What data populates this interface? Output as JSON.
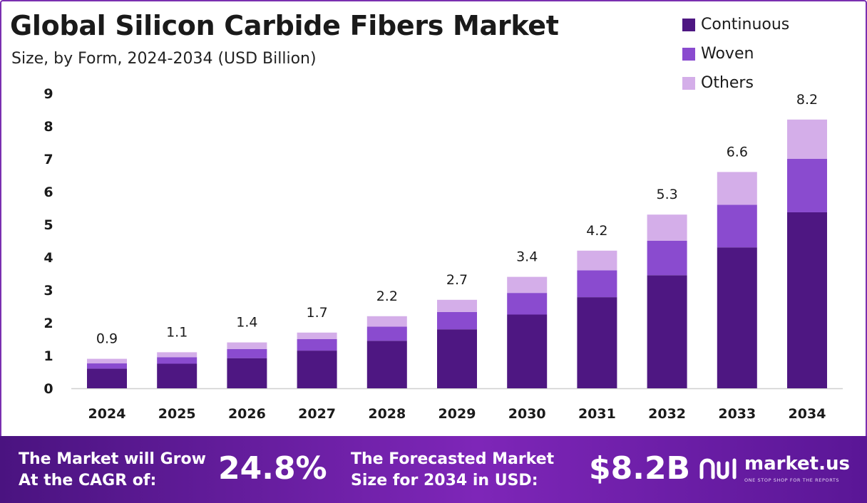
{
  "header": {
    "title": "Global Silicon Carbide Fibers Market",
    "subtitle": "Size, by Form, 2024-2034 (USD Billion)"
  },
  "colors": {
    "continuous": "#4e1782",
    "woven": "#8a4bcf",
    "others": "#d4aee9",
    "frame": "#7a2fb0",
    "footer_start": "#4a1380",
    "footer_end": "#7e26b8"
  },
  "chart_data": {
    "type": "bar",
    "stacked": true,
    "categories": [
      "2024",
      "2025",
      "2026",
      "2027",
      "2028",
      "2029",
      "2030",
      "2031",
      "2032",
      "2033",
      "2034"
    ],
    "series": [
      {
        "name": "Continuous",
        "values": [
          0.6,
          0.75,
          0.92,
          1.15,
          1.45,
          1.8,
          2.25,
          2.78,
          3.45,
          4.3,
          5.37
        ]
      },
      {
        "name": "Woven",
        "values": [
          0.16,
          0.2,
          0.28,
          0.35,
          0.43,
          0.53,
          0.66,
          0.82,
          1.05,
          1.3,
          1.63
        ]
      },
      {
        "name": "Others",
        "values": [
          0.14,
          0.15,
          0.2,
          0.2,
          0.32,
          0.37,
          0.49,
          0.6,
          0.8,
          1.0,
          1.2
        ]
      }
    ],
    "totals": [
      "0.9",
      "1.1",
      "1.4",
      "1.7",
      "2.2",
      "2.7",
      "3.4",
      "4.2",
      "5.3",
      "6.6",
      "8.2"
    ],
    "y_ticks": [
      "0",
      "1",
      "2",
      "3",
      "4",
      "5",
      "6",
      "7",
      "8",
      "9"
    ],
    "ylim": [
      0,
      9
    ],
    "title": "Global Silicon Carbide Fibers Market",
    "subtitle": "Size, by Form, 2024-2034 (USD Billion)",
    "xlabel": "",
    "ylabel": "",
    "grid": false,
    "legend_position": "top-right"
  },
  "footer": {
    "cagr_label_line1": "The Market will Grow",
    "cagr_label_line2": "At the CAGR of:",
    "cagr_value": "24.8%",
    "forecast_label_line1": "The Forecasted Market",
    "forecast_label_line2": "Size for 2034 in USD:",
    "forecast_value": "$8.2B",
    "logo_name": "market.us",
    "logo_tagline": "ONE STOP SHOP FOR THE REPORTS"
  }
}
